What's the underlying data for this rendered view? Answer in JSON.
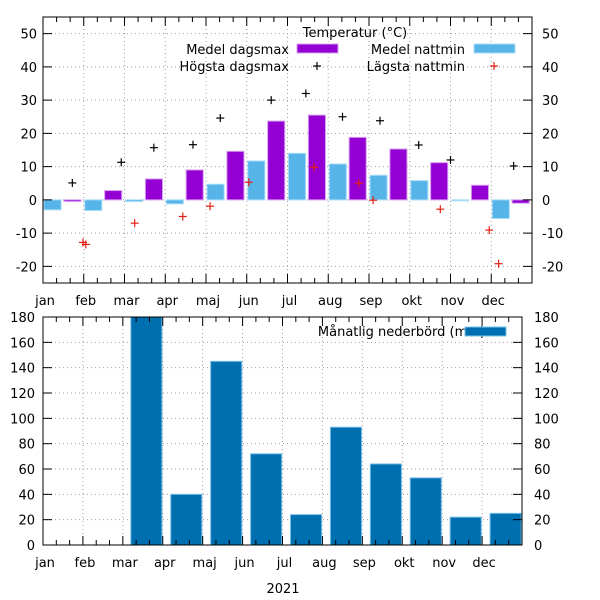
{
  "chart_data": [
    {
      "type": "bar",
      "title": "Temperatur (°C)",
      "xlabel": "",
      "ylabel": "",
      "ylim": [
        -25,
        55
      ],
      "yticks": [
        -20,
        -10,
        0,
        10,
        20,
        30,
        40,
        50
      ],
      "grid": true,
      "legend_position": "top-right",
      "categories": [
        "jan",
        "feb",
        "mar",
        "apr",
        "maj",
        "jun",
        "jul",
        "aug",
        "sep",
        "okt",
        "nov",
        "dec"
      ],
      "series": [
        {
          "name": "Medel nattmin",
          "kind": "bar",
          "color": "#56b4e9",
          "values": [
            -3.0,
            -3.2,
            -0.5,
            -1.2,
            4.7,
            11.7,
            14.0,
            10.8,
            7.4,
            5.8,
            -0.2,
            -5.6
          ]
        },
        {
          "name": "Medel dagsmax",
          "kind": "bar",
          "color": "#9400d3",
          "values": [
            -0.5,
            2.8,
            6.3,
            9.0,
            14.6,
            23.7,
            25.5,
            18.8,
            15.3,
            11.2,
            4.4,
            -1.0
          ]
        }
      ],
      "points": [
        {
          "name": "Högsta dagsmax",
          "kind": "marker",
          "color": "#000000",
          "data": [
            {
              "month": 0.72,
              "value": 5.1
            },
            {
              "month": 1.92,
              "value": 11.3
            },
            {
              "month": 2.72,
              "value": 15.7
            },
            {
              "month": 3.68,
              "value": 16.6
            },
            {
              "month": 4.35,
              "value": 24.6
            },
            {
              "month": 5.6,
              "value": 30.0
            },
            {
              "month": 6.45,
              "value": 32.0
            },
            {
              "month": 7.35,
              "value": 25.0
            },
            {
              "month": 8.27,
              "value": 23.8
            },
            {
              "month": 9.22,
              "value": 16.5
            },
            {
              "month": 10.0,
              "value": 12.0
            },
            {
              "month": 11.55,
              "value": 10.2
            }
          ]
        },
        {
          "name": "Lägsta nattmin",
          "kind": "marker",
          "color": "#e51e10",
          "data": [
            {
              "month": 0.98,
              "value": -12.8
            },
            {
              "month": 1.05,
              "value": -13.4
            },
            {
              "month": 2.25,
              "value": -7.0
            },
            {
              "month": 3.43,
              "value": -5.0
            },
            {
              "month": 4.1,
              "value": -1.9
            },
            {
              "month": 5.05,
              "value": 5.3
            },
            {
              "month": 6.65,
              "value": 9.8
            },
            {
              "month": 7.75,
              "value": 5.0
            },
            {
              "month": 8.1,
              "value": -0.1
            },
            {
              "month": 9.75,
              "value": -2.8
            },
            {
              "month": 10.95,
              "value": -9.1
            },
            {
              "month": 11.18,
              "value": -19.2
            }
          ]
        }
      ]
    },
    {
      "type": "bar",
      "title": "",
      "xlabel": "2021",
      "ylabel": "",
      "ylim": [
        0,
        180
      ],
      "yticks": [
        0,
        20,
        40,
        60,
        80,
        100,
        120,
        140,
        160,
        180
      ],
      "grid": true,
      "legend_position": "top-right",
      "categories": [
        "jan",
        "feb",
        "mar",
        "apr",
        "maj",
        "jun",
        "jul",
        "aug",
        "sep",
        "okt",
        "nov",
        "dec"
      ],
      "series": [
        {
          "name": "Månatlig nederbörd (mm)",
          "color": "#006fb0",
          "values": [
            0,
            0,
            185,
            40,
            145,
            72,
            24,
            93,
            64,
            53,
            22,
            25
          ]
        }
      ]
    }
  ]
}
